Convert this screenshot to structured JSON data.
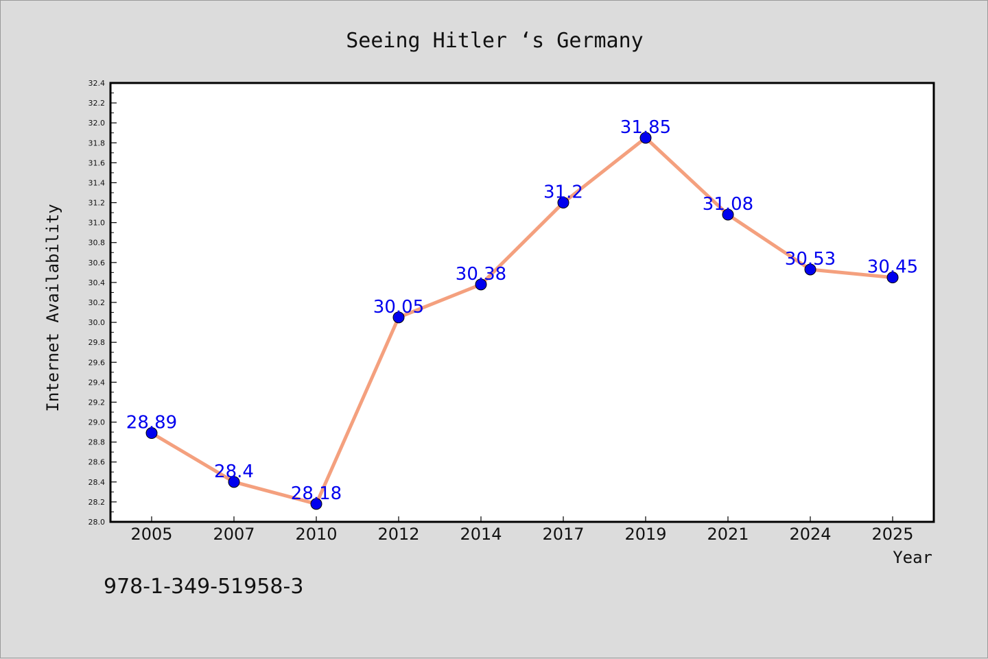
{
  "chart_data": {
    "type": "line",
    "title": "Seeing Hitler ‘s Germany",
    "xlabel": "Year",
    "ylabel": "Internet Availability",
    "categories": [
      "2005",
      "2007",
      "2010",
      "2012",
      "2014",
      "2017",
      "2019",
      "2021",
      "2024",
      "2025"
    ],
    "values": [
      28.89,
      28.4,
      28.18,
      30.05,
      30.38,
      31.2,
      31.85,
      31.08,
      30.53,
      30.45
    ],
    "data_labels": [
      "28.89",
      "28.4",
      "28.18",
      "30.05",
      "30.38",
      "31.2",
      "31.85",
      "31.08",
      "30.53",
      "30.45"
    ],
    "ylim": [
      28.0,
      32.4
    ],
    "yticks": [
      "28.0",
      "28.2",
      "28.4",
      "28.6",
      "28.8",
      "29.0",
      "29.2",
      "29.4",
      "29.6",
      "29.8",
      "30.0",
      "30.2",
      "30.4",
      "30.6",
      "30.8",
      "31.0",
      "31.2",
      "31.4",
      "31.6",
      "31.8",
      "32.0",
      "32.2",
      "32.4"
    ],
    "grid": false,
    "line_color": "#f4a07e",
    "marker_color": "#0000ee",
    "label_color": "#0000ee"
  },
  "footnote": "978-1-349-51958-3"
}
